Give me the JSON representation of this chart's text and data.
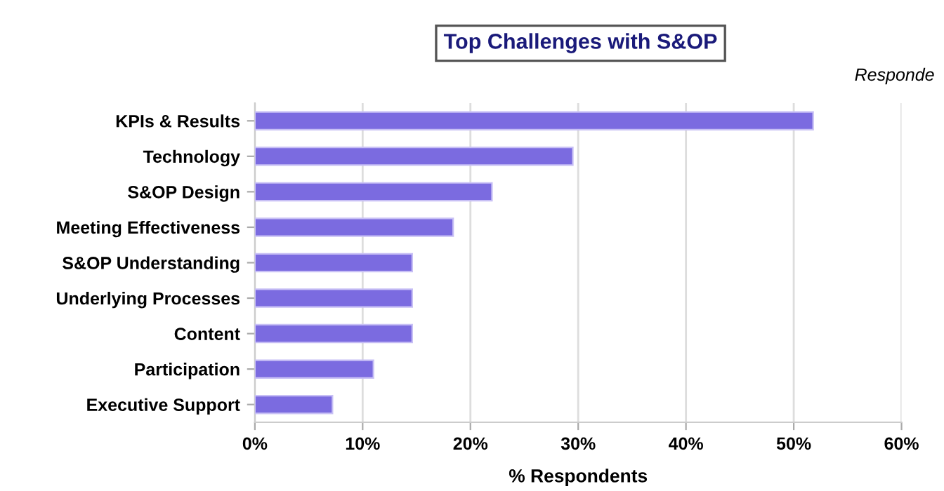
{
  "chart_data": {
    "type": "bar",
    "orientation": "horizontal",
    "title": "Top Challenges with S&OP",
    "xlabel": "% Respondents",
    "annotations": [
      "Responde"
    ],
    "categories": [
      "KPIs & Results",
      "Technology",
      "S&OP Design",
      "Meeting Effectiveness",
      "S&OP Understanding",
      "Underlying Processes",
      "Content",
      "Participation",
      "Executive Support"
    ],
    "values": [
      51.8,
      29.5,
      22,
      18.4,
      14.6,
      14.6,
      14.6,
      11,
      7.2
    ],
    "color": "#7b6be0",
    "xlim": [
      0,
      60
    ],
    "xticks": [
      {
        "value": 0,
        "label": "0%"
      },
      {
        "value": 10,
        "label": "10%"
      },
      {
        "value": 20,
        "label": "20%"
      },
      {
        "value": 30,
        "label": "30%"
      },
      {
        "value": 40,
        "label": "40%"
      },
      {
        "value": 50,
        "label": "50%"
      },
      {
        "value": 60,
        "label": "60%"
      }
    ],
    "grid": "x"
  }
}
